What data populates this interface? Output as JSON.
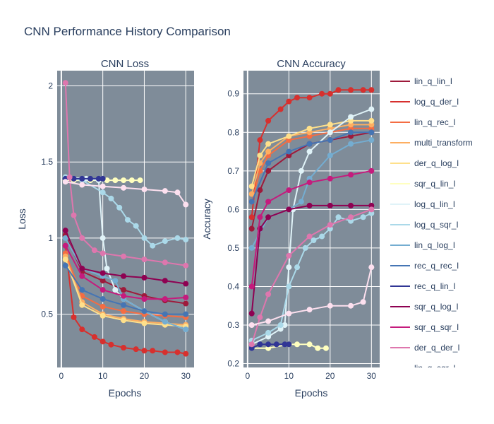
{
  "figure_title": "CNN Performance History Comparison",
  "chart_data": [
    {
      "type": "line",
      "title": "CNN Loss",
      "xlabel": "Epochs",
      "ylabel": "Loss",
      "xlim": [
        -1,
        32
      ],
      "ylim": [
        0.15,
        2.1
      ],
      "xticks": [
        0,
        10,
        20,
        30
      ],
      "yticks": [
        0.5,
        1,
        1.5,
        2
      ],
      "ytick_labels": [
        "0.5",
        "1",
        "1.5",
        "2"
      ],
      "grid": true,
      "series": [
        {
          "name": "lin_q_lin_I",
          "x": [
            1,
            5,
            10,
            15,
            20,
            25,
            30
          ],
          "y": [
            1.02,
            0.78,
            0.72,
            0.66,
            0.62,
            0.59,
            0.57
          ]
        },
        {
          "name": "log_q_der_I",
          "x": [
            1,
            3,
            5,
            8,
            10,
            12,
            15,
            18,
            20,
            22,
            25,
            28,
            30
          ],
          "y": [
            0.95,
            0.48,
            0.4,
            0.35,
            0.32,
            0.3,
            0.28,
            0.27,
            0.26,
            0.26,
            0.25,
            0.25,
            0.24
          ]
        },
        {
          "name": "lin_q_rec_I",
          "x": [
            1,
            5,
            10,
            15,
            20,
            25,
            30
          ],
          "y": [
            0.9,
            0.62,
            0.55,
            0.52,
            0.5,
            0.49,
            0.48
          ]
        },
        {
          "name": "multi_transform",
          "x": [
            1,
            5,
            10,
            15,
            20,
            25,
            30
          ],
          "y": [
            0.88,
            0.58,
            0.5,
            0.47,
            0.45,
            0.44,
            0.43
          ]
        },
        {
          "name": "der_q_log_I",
          "x": [
            1,
            5,
            10,
            15,
            20,
            25,
            30
          ],
          "y": [
            0.86,
            0.56,
            0.49,
            0.46,
            0.44,
            0.43,
            0.42
          ]
        },
        {
          "name": "sqr_q_lin_I",
          "x": [
            1,
            3,
            5,
            7,
            9,
            11,
            13,
            15,
            17,
            19
          ],
          "y": [
            1.38,
            1.38,
            1.38,
            1.38,
            1.38,
            1.38,
            1.38,
            1.38,
            1.38,
            1.38
          ]
        },
        {
          "name": "log_q_lin_I",
          "x": [
            1,
            6,
            9,
            10,
            11,
            13,
            15,
            20,
            25,
            30
          ],
          "y": [
            1.4,
            1.39,
            1.38,
            1.0,
            0.8,
            0.66,
            0.6,
            0.52,
            0.45,
            0.4
          ]
        },
        {
          "name": "log_q_sqr_I",
          "x": [
            1,
            5,
            10,
            12,
            14,
            16,
            18,
            20,
            22,
            25,
            28,
            30
          ],
          "y": [
            1.4,
            1.38,
            1.3,
            1.26,
            1.2,
            1.12,
            1.08,
            1.0,
            0.95,
            0.98,
            1.0,
            0.99
          ]
        },
        {
          "name": "lin_q_log_I",
          "x": [
            1,
            5,
            10,
            13,
            15,
            20,
            25,
            30
          ],
          "y": [
            1.0,
            0.8,
            0.75,
            0.72,
            0.6,
            0.52,
            0.45,
            0.4
          ]
        },
        {
          "name": "rec_q_rec_I",
          "x": [
            1,
            5,
            10,
            15,
            20,
            25,
            30
          ],
          "y": [
            0.82,
            0.66,
            0.6,
            0.56,
            0.52,
            0.5,
            0.5
          ]
        },
        {
          "name": "rec_q_lin_I",
          "x": [
            1,
            3,
            5,
            7,
            9,
            10
          ],
          "y": [
            1.39,
            1.39,
            1.39,
            1.39,
            1.39,
            1.39
          ]
        },
        {
          "name": "sqr_q_log_I",
          "x": [
            1,
            5,
            10,
            15,
            20,
            25,
            30
          ],
          "y": [
            1.05,
            0.8,
            0.77,
            0.75,
            0.74,
            0.72,
            0.7
          ]
        },
        {
          "name": "sqr_q_sqr_I",
          "x": [
            1,
            5,
            10,
            15,
            20,
            25,
            30
          ],
          "y": [
            0.95,
            0.75,
            0.66,
            0.62,
            0.6,
            0.6,
            0.61
          ]
        },
        {
          "name": "der_q_der_I",
          "x": [
            1,
            2,
            3,
            5,
            8,
            10,
            15,
            20,
            25,
            30
          ],
          "y": [
            2.02,
            1.4,
            1.15,
            1.0,
            0.92,
            0.9,
            0.88,
            0.86,
            0.84,
            0.82
          ]
        },
        {
          "name": "lin_q_sqr_I",
          "x": [
            1,
            5,
            10,
            15,
            20,
            25,
            28,
            30
          ],
          "y": [
            1.37,
            1.35,
            1.34,
            1.33,
            1.32,
            1.31,
            1.3,
            1.22
          ]
        }
      ]
    },
    {
      "type": "line",
      "title": "CNN Accuracy",
      "xlabel": "Epochs",
      "ylabel": "Accuracy",
      "xlim": [
        -1,
        32
      ],
      "ylim": [
        0.19,
        0.96
      ],
      "xticks": [
        0,
        10,
        20,
        30
      ],
      "yticks": [
        0.2,
        0.3,
        0.4,
        0.5,
        0.6,
        0.7,
        0.8,
        0.9
      ],
      "ytick_labels": [
        "0.2",
        "0.3",
        "0.4",
        "0.5",
        "0.6",
        "0.7",
        "0.8",
        "0.9"
      ],
      "grid": true,
      "series": [
        {
          "name": "lin_q_lin_I",
          "x": [
            1,
            3,
            5,
            10,
            15,
            20,
            25,
            30
          ],
          "y": [
            0.55,
            0.65,
            0.7,
            0.74,
            0.77,
            0.78,
            0.79,
            0.8
          ]
        },
        {
          "name": "log_q_der_I",
          "x": [
            1,
            3,
            5,
            8,
            10,
            12,
            15,
            18,
            20,
            22,
            25,
            28,
            30
          ],
          "y": [
            0.58,
            0.78,
            0.83,
            0.86,
            0.88,
            0.89,
            0.89,
            0.9,
            0.9,
            0.91,
            0.91,
            0.91,
            0.91
          ]
        },
        {
          "name": "lin_q_rec_I",
          "x": [
            1,
            3,
            5,
            10,
            15,
            20,
            25,
            30
          ],
          "y": [
            0.62,
            0.7,
            0.74,
            0.78,
            0.79,
            0.8,
            0.81,
            0.81
          ]
        },
        {
          "name": "multi_transform",
          "x": [
            1,
            3,
            5,
            10,
            15,
            20,
            25,
            30
          ],
          "y": [
            0.64,
            0.72,
            0.75,
            0.79,
            0.8,
            0.81,
            0.82,
            0.82
          ]
        },
        {
          "name": "der_q_log_I",
          "x": [
            1,
            3,
            5,
            10,
            15,
            20,
            25,
            30
          ],
          "y": [
            0.66,
            0.74,
            0.77,
            0.79,
            0.81,
            0.82,
            0.83,
            0.83
          ]
        },
        {
          "name": "sqr_q_lin_I",
          "x": [
            1,
            5,
            10,
            12,
            15,
            17,
            19
          ],
          "y": [
            0.24,
            0.24,
            0.25,
            0.25,
            0.25,
            0.24,
            0.24
          ]
        },
        {
          "name": "log_q_lin_I",
          "x": [
            1,
            5,
            8,
            9,
            10,
            11,
            13,
            15,
            20,
            25,
            30
          ],
          "y": [
            0.25,
            0.27,
            0.29,
            0.3,
            0.45,
            0.6,
            0.7,
            0.75,
            0.8,
            0.84,
            0.86
          ]
        },
        {
          "name": "log_q_sqr_I",
          "x": [
            1,
            5,
            8,
            10,
            12,
            14,
            16,
            18,
            20,
            22,
            25,
            28,
            30
          ],
          "y": [
            0.26,
            0.28,
            0.3,
            0.4,
            0.45,
            0.5,
            0.52,
            0.53,
            0.55,
            0.58,
            0.57,
            0.58,
            0.59
          ]
        },
        {
          "name": "lin_q_log_I",
          "x": [
            1,
            5,
            10,
            13,
            15,
            20,
            25,
            30
          ],
          "y": [
            0.5,
            0.58,
            0.6,
            0.62,
            0.68,
            0.74,
            0.77,
            0.78
          ]
        },
        {
          "name": "rec_q_rec_I",
          "x": [
            1,
            5,
            10,
            15,
            20,
            25,
            30
          ],
          "y": [
            0.62,
            0.72,
            0.75,
            0.77,
            0.78,
            0.8,
            0.8
          ]
        },
        {
          "name": "rec_q_lin_I",
          "x": [
            1,
            3,
            5,
            7,
            9,
            10
          ],
          "y": [
            0.24,
            0.25,
            0.25,
            0.25,
            0.25,
            0.25
          ]
        },
        {
          "name": "sqr_q_log_I",
          "x": [
            1,
            3,
            5,
            10,
            15,
            20,
            25,
            30
          ],
          "y": [
            0.33,
            0.55,
            0.58,
            0.6,
            0.61,
            0.61,
            0.61,
            0.61
          ]
        },
        {
          "name": "sqr_q_sqr_I",
          "x": [
            1,
            3,
            5,
            10,
            15,
            20,
            25,
            30
          ],
          "y": [
            0.4,
            0.58,
            0.62,
            0.65,
            0.67,
            0.68,
            0.69,
            0.7
          ]
        },
        {
          "name": "der_q_der_I",
          "x": [
            1,
            3,
            5,
            10,
            15,
            20,
            25,
            30
          ],
          "y": [
            0.25,
            0.32,
            0.38,
            0.48,
            0.53,
            0.56,
            0.58,
            0.6
          ]
        },
        {
          "name": "lin_q_sqr_I",
          "x": [
            1,
            5,
            10,
            15,
            20,
            25,
            28,
            30
          ],
          "y": [
            0.3,
            0.31,
            0.33,
            0.34,
            0.35,
            0.35,
            0.36,
            0.45
          ]
        }
      ]
    }
  ],
  "legend": {
    "placement": "right",
    "entries": [
      {
        "name": "lin_q_lin_I",
        "color": "#9e1a3b"
      },
      {
        "name": "log_q_der_I",
        "color": "#d7302e"
      },
      {
        "name": "lin_q_rec_I",
        "color": "#f46d43"
      },
      {
        "name": "multi_transform",
        "color": "#fdae61"
      },
      {
        "name": "der_q_log_I",
        "color": "#fee08b"
      },
      {
        "name": "sqr_q_lin_I",
        "color": "#ffffbf"
      },
      {
        "name": "log_q_lin_I",
        "color": "#e0f3f8"
      },
      {
        "name": "log_q_sqr_I",
        "color": "#abd9e9"
      },
      {
        "name": "lin_q_log_I",
        "color": "#74add1"
      },
      {
        "name": "rec_q_rec_I",
        "color": "#4575b4"
      },
      {
        "name": "rec_q_lin_I",
        "color": "#313695"
      },
      {
        "name": "sqr_q_log_I",
        "color": "#8e0152"
      },
      {
        "name": "sqr_q_sqr_I",
        "color": "#c51b7d"
      },
      {
        "name": "der_q_der_I",
        "color": "#de77ae"
      },
      {
        "name": "lin_q_sqr_I",
        "color": "#fde0ef"
      }
    ]
  },
  "colors": {
    "plot_background": "#7f8c99",
    "grid": "#ffffff",
    "text": "#2a3f5f"
  }
}
